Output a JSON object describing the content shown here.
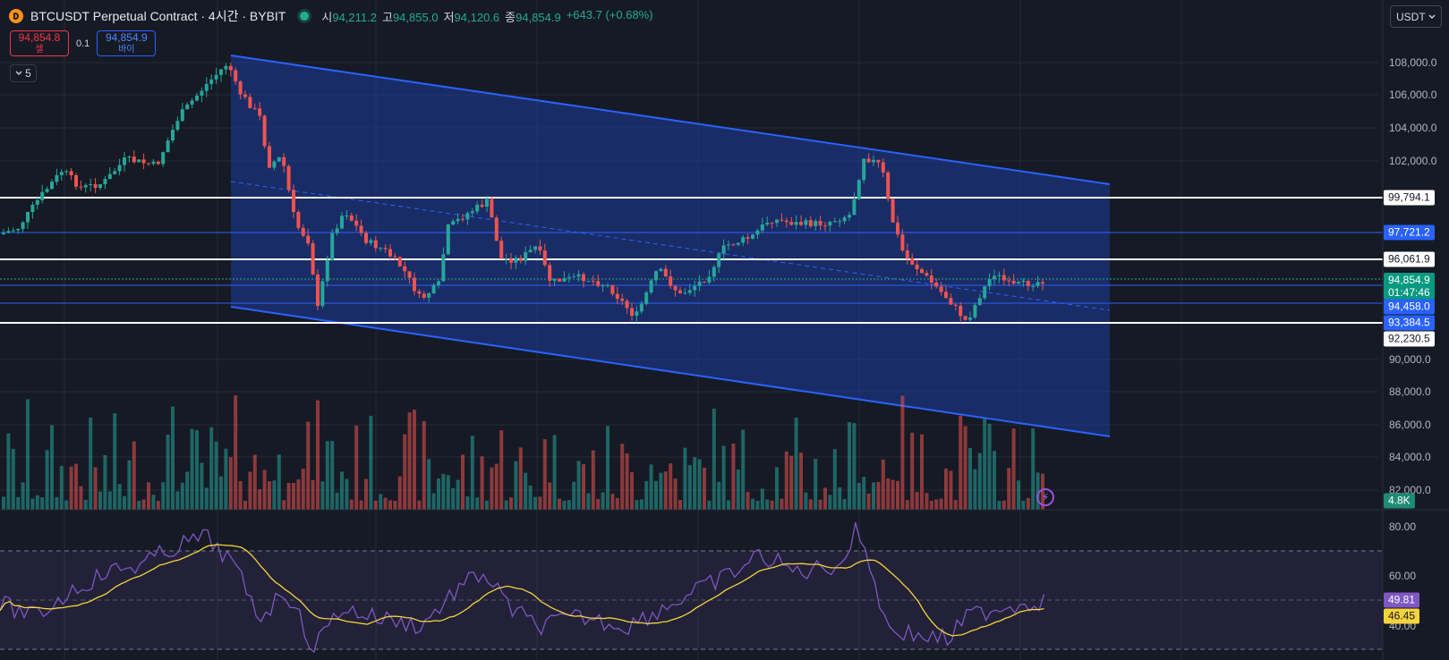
{
  "header": {
    "title": "BTCUSDT Perpetual Contract · 4시간 · BYBIT",
    "ohlc": [
      {
        "label": "시",
        "value": "94,211.2"
      },
      {
        "label": "고",
        "value": "94,855.0"
      },
      {
        "label": "저",
        "value": "94,120.6"
      },
      {
        "label": "종",
        "value": "94,854.9"
      }
    ],
    "change": "+643.7 (+0.68%)"
  },
  "trade": {
    "sell_price": "94,854.8",
    "sell_label": "셀",
    "spread": "0.1",
    "buy_price": "94,854.9",
    "buy_label": "바이"
  },
  "indicator_count": "5",
  "currency": "USDT",
  "price_axis": {
    "ticks": [
      "108,000.0",
      "106,000.0",
      "104,000.0",
      "102,000.0",
      "90,000.0",
      "88,000.0",
      "86,000.0",
      "84,000.0",
      "82,000.0"
    ],
    "labels": {
      "level_1": "99,794.1",
      "level_2": "97,721.2",
      "level_3": "96,061.9",
      "last_price": "94,854.9",
      "countdown": "01:47:46",
      "level_4": "94,458.0",
      "level_5": "93,384.5",
      "level_6": "92,230.5"
    },
    "volume_label": "4.8K"
  },
  "rsi_axis": {
    "ticks": [
      "80.00",
      "60.00",
      "40.00"
    ],
    "rsi_value": "49.81",
    "rsi_ma_value": "46.45"
  },
  "colors": {
    "background": "#161a25",
    "up": "#26a69a",
    "down": "#ef5350",
    "channel": "#2962ff",
    "level_white": "#ffffff",
    "rsi": "#7e57c2",
    "rsi_ma": "#f5d33c"
  },
  "icons": [
    "bitcoin-icon",
    "chevron-down-icon",
    "alert-clock-icon"
  ]
}
